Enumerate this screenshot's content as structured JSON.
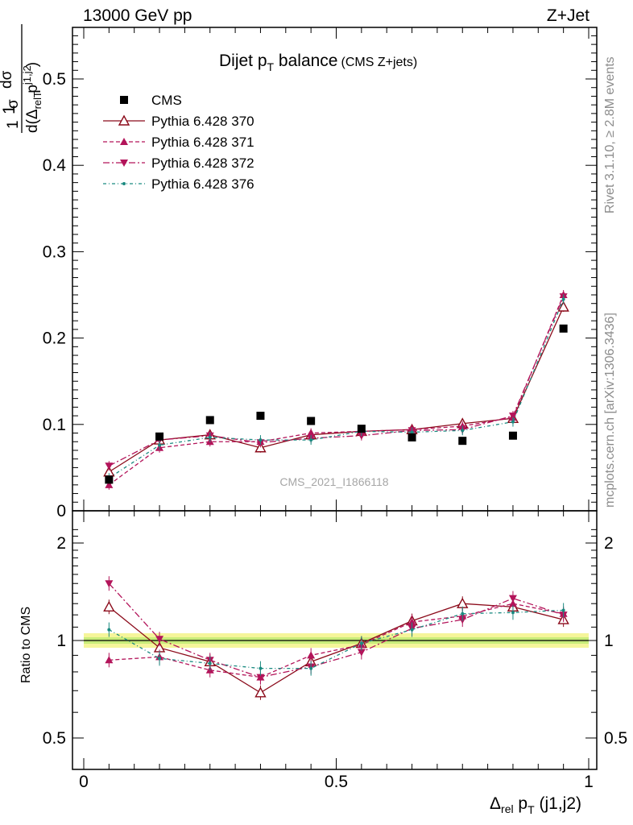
{
  "header": {
    "left": "13000 GeV pp",
    "right": "Z+Jet"
  },
  "side_labels": {
    "rivet": "Rivet 3.1.10, ≥ 2.8M events",
    "mcplots": "mcplots.cern.ch [arXiv:1306.3436]"
  },
  "chart_data": {
    "type": "scatter",
    "title_main": "Dijet p",
    "title_sub": "T",
    "title_tail": " balance",
    "title_small": "(CMS Z+jets)",
    "watermark": "CMS_2021_I1866118",
    "x_label": {
      "delta": "Δ",
      "rel": "rel",
      "p": " p",
      "T": "T",
      "tail": " (j1,j2)"
    },
    "y_label_upper": {
      "one": "1",
      "sigma": "σ",
      "dsigma": "dσ",
      "d_open": "d(Δ",
      "rel": "rel",
      "p": " p",
      "j": "j1,j2",
      "T": "T",
      "close": ")"
    },
    "y_label_lower": "Ratio to CMS",
    "xlim": [
      0,
      1
    ],
    "ylim_upper": [
      0,
      0.57
    ],
    "ylim_lower": [
      0.32,
      2.28
    ],
    "x_ticks": [
      "0",
      "0.5",
      "1"
    ],
    "y_ticks_upper": [
      "0",
      "0.1",
      "0.2",
      "0.3",
      "0.4",
      "0.5"
    ],
    "y_ticks_lower": [
      "0.5",
      "1",
      "2"
    ],
    "x": [
      0.05,
      0.15,
      0.25,
      0.35,
      0.45,
      0.55,
      0.65,
      0.75,
      0.85,
      0.95
    ],
    "series": [
      {
        "name": "CMS",
        "color": "#000000",
        "marker": "square",
        "values": [
          0.036,
          0.086,
          0.105,
          0.11,
          0.104,
          0.095,
          0.085,
          0.081,
          0.087,
          0.211
        ],
        "ratio": [
          1.0,
          1.0,
          1.0,
          1.0,
          1.0,
          1.0,
          1.0,
          1.0,
          1.0,
          1.0
        ]
      },
      {
        "name": "Pythia 6.428 370",
        "color": "#8b0a1a",
        "marker": "triangle-up-open",
        "dash": "",
        "values": [
          0.045,
          0.082,
          0.088,
          0.073,
          0.088,
          0.092,
          0.094,
          0.101,
          0.107,
          0.236
        ],
        "ratio": [
          1.27,
          0.95,
          0.86,
          0.69,
          0.86,
          0.98,
          1.15,
          1.3,
          1.27,
          1.16
        ]
      },
      {
        "name": "Pythia 6.428 371",
        "color": "#b3145a",
        "marker": "triangle-up-filled",
        "dash": "5,3",
        "values": [
          0.03,
          0.073,
          0.08,
          0.08,
          0.09,
          0.092,
          0.094,
          0.098,
          0.108,
          0.25
        ],
        "ratio": [
          0.87,
          0.89,
          0.81,
          0.77,
          0.9,
          0.97,
          1.14,
          1.19,
          1.3,
          1.21
        ]
      },
      {
        "name": "Pythia 6.428 372",
        "color": "#b3145a",
        "marker": "triangle-down-filled",
        "dash": "8,3,2,3",
        "values": [
          0.052,
          0.082,
          0.087,
          0.079,
          0.084,
          0.087,
          0.093,
          0.094,
          0.11,
          0.248
        ],
        "ratio": [
          1.5,
          1.01,
          0.87,
          0.77,
          0.83,
          0.92,
          1.09,
          1.16,
          1.35,
          1.2
        ]
      },
      {
        "name": "Pythia 6.428 376",
        "color": "#1a8a80",
        "marker": "dot",
        "dash": "4,3,1,3",
        "values": [
          0.038,
          0.076,
          0.085,
          0.082,
          0.082,
          0.092,
          0.091,
          0.093,
          0.103,
          0.245
        ],
        "ratio": [
          1.08,
          0.88,
          0.85,
          0.82,
          0.82,
          0.98,
          1.08,
          1.21,
          1.22,
          1.24
        ]
      }
    ]
  }
}
